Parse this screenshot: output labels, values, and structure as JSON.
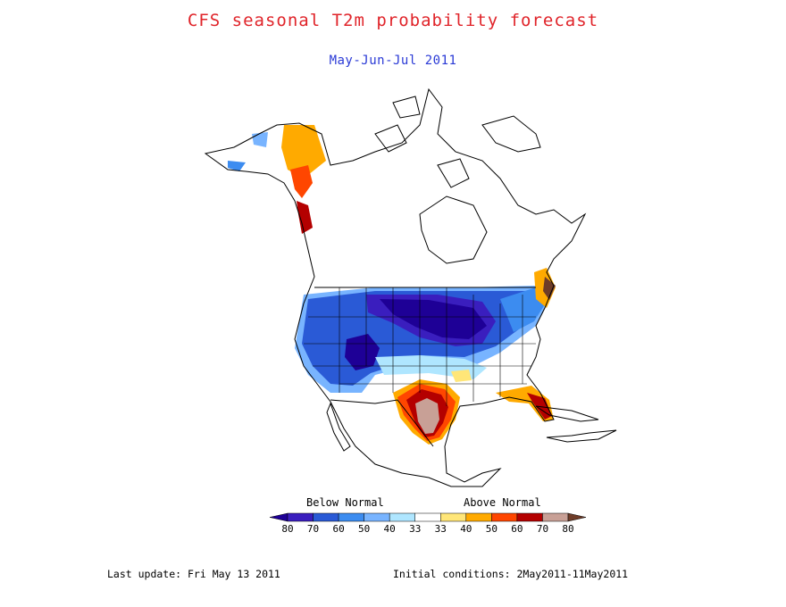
{
  "title": "CFS seasonal T2m probability forecast",
  "subtitle": "May-Jun-Jul 2011",
  "legend": {
    "below_label": "Below Normal",
    "above_label": "Above Normal",
    "ticks": [
      "80",
      "70",
      "60",
      "50",
      "40",
      "33",
      "33",
      "40",
      "50",
      "60",
      "70",
      "80"
    ],
    "colors": [
      "#1e0096",
      "#3a1ebe",
      "#2a5ad6",
      "#3c8cf0",
      "#78b4ff",
      "#afe6ff",
      "#ffffff",
      "#ffe678",
      "#ffaa00",
      "#ff4600",
      "#b40000",
      "#c8a096",
      "#6e3c28"
    ]
  },
  "footer": {
    "last_update": "Last update: Fri May 13 2011",
    "initial_conditions": "Initial conditions: 2May2011-11May2011"
  },
  "colors": {
    "title": "#e0242a",
    "subtitle": "#2a3ad6"
  }
}
